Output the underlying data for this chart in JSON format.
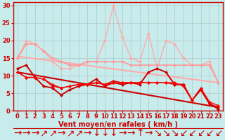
{
  "xlabel": "Vent moyen/en rafales ( km/h )",
  "background_color": "#c8ecec",
  "grid_color": "#b0c8c8",
  "x_ticks": [
    0,
    1,
    2,
    3,
    4,
    5,
    6,
    7,
    8,
    9,
    10,
    11,
    12,
    13,
    14,
    15,
    16,
    17,
    18,
    19,
    20,
    21,
    22,
    23
  ],
  "ylim": [
    0,
    31
  ],
  "xlim": [
    -0.5,
    23.5
  ],
  "series": [
    {
      "y": [
        15,
        20,
        19,
        17,
        14,
        12,
        12,
        13,
        14,
        14,
        20,
        30,
        21,
        15,
        14,
        22,
        12,
        20,
        19,
        15,
        13,
        13,
        14,
        8
      ],
      "color": "#ffaaaa",
      "lw": 1.0,
      "marker": "D",
      "ms": 2
    },
    {
      "y": [
        15,
        19,
        19,
        17,
        15,
        14,
        13,
        13,
        14,
        14,
        14,
        14,
        14,
        13,
        13,
        13,
        13,
        13,
        13,
        13,
        13,
        13,
        13,
        8
      ],
      "color": "#ff9999",
      "lw": 1.2,
      "marker": "D",
      "ms": 2
    },
    {
      "y": [
        12,
        13,
        9.5,
        7,
        6.5,
        4.5,
        6,
        7,
        7.5,
        9,
        7,
        8,
        7.5,
        8,
        7.5,
        11,
        12,
        11,
        7.5,
        7.5,
        3,
        6,
        2,
        0.5
      ],
      "color": "#cc0000",
      "lw": 1.4,
      "marker": "D",
      "ms": 2
    },
    {
      "y": [
        11,
        9.5,
        9.5,
        9,
        7,
        6.5,
        7,
        7.5,
        7.5,
        8,
        7.5,
        8.5,
        8,
        8,
        8,
        8,
        8,
        8,
        7.5,
        7.5,
        3,
        6,
        2,
        1
      ],
      "color": "#dd0000",
      "lw": 1.0,
      "marker": "D",
      "ms": 2
    },
    {
      "y": [
        11,
        9.5,
        9.5,
        9,
        7.5,
        6.5,
        7,
        7.5,
        7.5,
        8,
        7.5,
        8,
        8,
        8,
        8,
        8,
        8,
        8,
        8,
        7,
        3,
        6.5,
        2.5,
        1.5
      ],
      "color": "#ff0000",
      "lw": 1.0,
      "marker": "D",
      "ms": 2
    }
  ],
  "trend_lines": [
    {
      "x0": 0,
      "y0": 15.5,
      "x1": 23,
      "y1": 8,
      "color": "#ffaaaa",
      "lw": 1.5
    },
    {
      "x0": 0,
      "y0": 11,
      "x1": 23,
      "y1": 1,
      "color": "#cc0000",
      "lw": 1.5
    }
  ],
  "yticks": [
    0,
    5,
    10,
    15,
    20,
    25,
    30
  ],
  "tick_fontsize": 6,
  "xlabel_fontsize": 7,
  "xlabel_color": "#cc0000",
  "wind_arrows": [
    "→",
    "→",
    "→",
    "↗",
    "↗",
    "→",
    "↗",
    "↗",
    "→",
    "↓",
    "↓",
    "↓",
    "→",
    "→",
    "↑",
    "→",
    "↘",
    "↘",
    "↘",
    "↙",
    "↙",
    "↙",
    "↙",
    "↙"
  ]
}
